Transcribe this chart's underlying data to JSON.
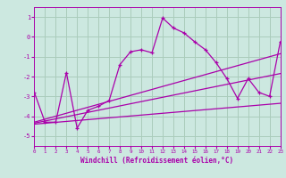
{
  "bg_color": "#cce8e0",
  "plot_bg_color": "#cce8e0",
  "grid_color": "#aaccbb",
  "line_color": "#aa00aa",
  "xlabel": "Windchill (Refroidissement éolien,°C)",
  "xlim": [
    0,
    23
  ],
  "ylim": [
    -5.5,
    1.5
  ],
  "yticks": [
    -5,
    -4,
    -3,
    -2,
    -1,
    0,
    1
  ],
  "xticks": [
    0,
    1,
    2,
    3,
    4,
    5,
    6,
    7,
    8,
    9,
    10,
    11,
    12,
    13,
    14,
    15,
    16,
    17,
    18,
    19,
    20,
    21,
    22,
    23
  ],
  "series1_x": [
    0,
    1,
    2,
    3,
    4,
    5,
    6,
    7,
    8,
    9,
    10,
    11,
    12,
    13,
    14,
    15,
    16,
    17,
    18,
    19,
    20,
    21,
    22,
    23
  ],
  "series1_y": [
    -2.8,
    -4.3,
    -4.3,
    -1.8,
    -4.6,
    -3.7,
    -3.5,
    -3.2,
    -1.4,
    -0.75,
    -0.65,
    -0.8,
    0.95,
    0.45,
    0.2,
    -0.25,
    -0.65,
    -1.3,
    -2.1,
    -3.1,
    -2.1,
    -2.8,
    -3.0,
    -0.25
  ],
  "series2_x": [
    0,
    23
  ],
  "series2_y": [
    -4.4,
    -3.35
  ],
  "series3_x": [
    0,
    23
  ],
  "series3_y": [
    -4.35,
    -1.85
  ],
  "series4_x": [
    0,
    23
  ],
  "series4_y": [
    -4.3,
    -0.85
  ]
}
